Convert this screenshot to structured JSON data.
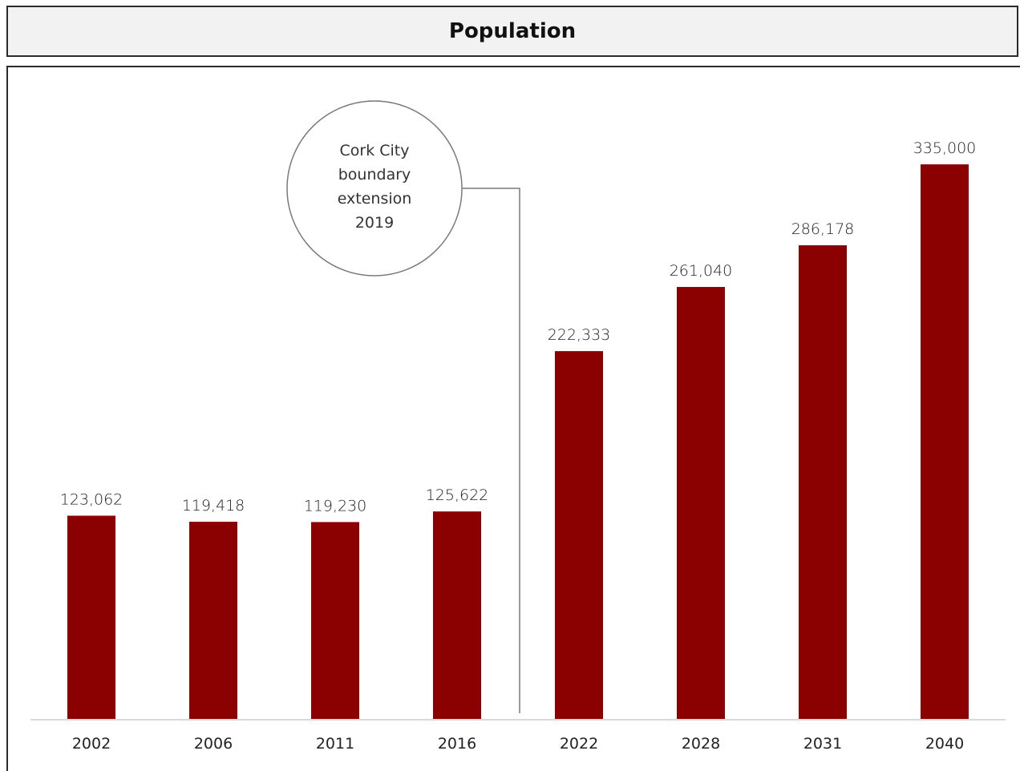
{
  "title": "Population",
  "annotation": {
    "lines": [
      "Cork City",
      "boundary",
      "extension",
      "2019"
    ]
  },
  "colors": {
    "bar": "#8b0000",
    "axis": "#d9d9d9",
    "annotation_line": "#7a7a7a"
  },
  "chart_data": {
    "type": "bar",
    "title": "Population",
    "xlabel": "",
    "ylabel": "",
    "categories": [
      "2002",
      "2006",
      "2011",
      "2016",
      "2022",
      "2028",
      "2031",
      "2040"
    ],
    "values": [
      123062,
      119418,
      119230,
      125622,
      222333,
      261040,
      286178,
      335000
    ],
    "value_labels": [
      "123,062",
      "119,418",
      "119,230",
      "125,622",
      "222,333",
      "261,040",
      "286,178",
      "335,000"
    ],
    "ylim": [
      0,
      380000
    ],
    "grid": false,
    "legend": "none"
  }
}
